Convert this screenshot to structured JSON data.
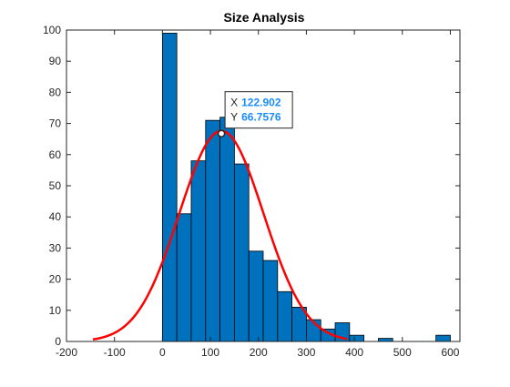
{
  "chart_data": {
    "type": "bar",
    "title": "Size Analysis",
    "xlim": [
      -200,
      620
    ],
    "ylim": [
      0,
      100
    ],
    "xticks": [
      -200,
      -100,
      0,
      100,
      200,
      300,
      400,
      500,
      600
    ],
    "yticks": [
      0,
      10,
      20,
      30,
      40,
      50,
      60,
      70,
      80,
      90,
      100
    ],
    "grid": false,
    "bar_color": "#0072BD",
    "bins": [
      {
        "x0": 0,
        "x1": 30,
        "value": 99
      },
      {
        "x0": 30,
        "x1": 60,
        "value": 41
      },
      {
        "x0": 60,
        "x1": 90,
        "value": 58
      },
      {
        "x0": 90,
        "x1": 120,
        "value": 71
      },
      {
        "x0": 120,
        "x1": 150,
        "value": 72
      },
      {
        "x0": 150,
        "x1": 180,
        "value": 57
      },
      {
        "x0": 180,
        "x1": 210,
        "value": 29
      },
      {
        "x0": 210,
        "x1": 240,
        "value": 26
      },
      {
        "x0": 240,
        "x1": 270,
        "value": 16
      },
      {
        "x0": 270,
        "x1": 300,
        "value": 11
      },
      {
        "x0": 300,
        "x1": 330,
        "value": 7
      },
      {
        "x0": 330,
        "x1": 360,
        "value": 4
      },
      {
        "x0": 360,
        "x1": 390,
        "value": 6
      },
      {
        "x0": 390,
        "x1": 420,
        "value": 2
      },
      {
        "x0": 420,
        "x1": 450,
        "value": 0
      },
      {
        "x0": 450,
        "x1": 480,
        "value": 1
      },
      {
        "x0": 480,
        "x1": 510,
        "value": 0
      },
      {
        "x0": 510,
        "x1": 540,
        "value": 0
      },
      {
        "x0": 540,
        "x1": 570,
        "value": 0
      },
      {
        "x0": 570,
        "x1": 600,
        "value": 2
      }
    ],
    "fit_curve": {
      "type": "normal",
      "color": "#FF0000",
      "peak": 67.6,
      "mean": 122.9,
      "std": 88,
      "x_range": [
        -145,
        385
      ]
    },
    "datatip": {
      "x": 122.902,
      "y": 66.7576,
      "x_label": "X",
      "y_label": "Y",
      "x_text": "122.902",
      "y_text": "66.7576",
      "value_color": "#1A8CFF"
    }
  }
}
